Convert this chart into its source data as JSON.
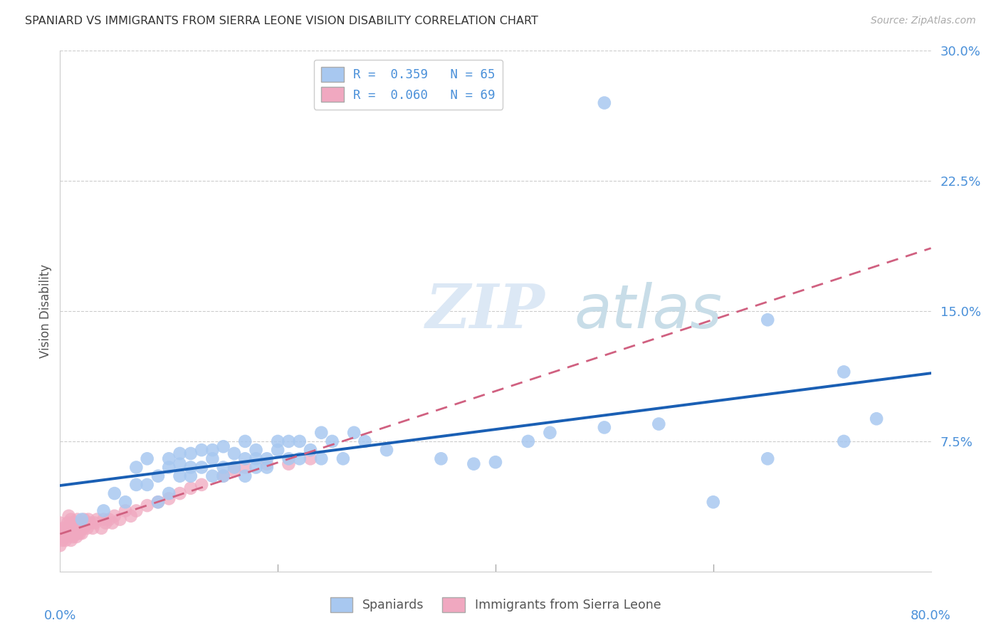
{
  "title": "SPANIARD VS IMMIGRANTS FROM SIERRA LEONE VISION DISABILITY CORRELATION CHART",
  "source": "Source: ZipAtlas.com",
  "ylabel": "Vision Disability",
  "yticks": [
    0.0,
    0.075,
    0.15,
    0.225,
    0.3
  ],
  "ytick_labels": [
    "",
    "7.5%",
    "15.0%",
    "22.5%",
    "30.0%"
  ],
  "xlim": [
    0.0,
    0.8
  ],
  "ylim": [
    0.0,
    0.3
  ],
  "watermark_zip": "ZIP",
  "watermark_atlas": "atlas",
  "legend_R1": "R =  0.359",
  "legend_N1": "N = 65",
  "legend_R2": "R =  0.060",
  "legend_N2": "N = 69",
  "spaniards_color": "#a8c8f0",
  "immigrants_color": "#f0a8c0",
  "regression_blue": "#1a5fb4",
  "regression_pink": "#d06080",
  "spaniards_x": [
    0.02,
    0.04,
    0.05,
    0.06,
    0.07,
    0.07,
    0.08,
    0.08,
    0.09,
    0.09,
    0.1,
    0.1,
    0.1,
    0.11,
    0.11,
    0.11,
    0.12,
    0.12,
    0.12,
    0.13,
    0.13,
    0.14,
    0.14,
    0.14,
    0.15,
    0.15,
    0.15,
    0.16,
    0.16,
    0.17,
    0.17,
    0.17,
    0.18,
    0.18,
    0.18,
    0.19,
    0.19,
    0.2,
    0.2,
    0.21,
    0.21,
    0.22,
    0.22,
    0.23,
    0.24,
    0.24,
    0.25,
    0.26,
    0.27,
    0.28,
    0.3,
    0.35,
    0.38,
    0.4,
    0.43,
    0.45,
    0.5,
    0.55,
    0.6,
    0.65,
    0.5,
    0.65,
    0.72,
    0.72,
    0.75
  ],
  "spaniards_y": [
    0.03,
    0.035,
    0.045,
    0.04,
    0.05,
    0.06,
    0.05,
    0.065,
    0.04,
    0.055,
    0.045,
    0.06,
    0.065,
    0.055,
    0.062,
    0.068,
    0.055,
    0.06,
    0.068,
    0.06,
    0.07,
    0.055,
    0.065,
    0.07,
    0.055,
    0.06,
    0.072,
    0.06,
    0.068,
    0.055,
    0.065,
    0.075,
    0.06,
    0.065,
    0.07,
    0.06,
    0.065,
    0.07,
    0.075,
    0.065,
    0.075,
    0.065,
    0.075,
    0.07,
    0.065,
    0.08,
    0.075,
    0.065,
    0.08,
    0.075,
    0.07,
    0.065,
    0.062,
    0.063,
    0.075,
    0.08,
    0.083,
    0.085,
    0.04,
    0.065,
    0.27,
    0.145,
    0.115,
    0.075,
    0.088
  ],
  "immigrants_x": [
    0.0,
    0.0,
    0.0,
    0.0,
    0.002,
    0.002,
    0.003,
    0.003,
    0.004,
    0.005,
    0.005,
    0.006,
    0.007,
    0.007,
    0.008,
    0.008,
    0.009,
    0.01,
    0.01,
    0.01,
    0.011,
    0.011,
    0.012,
    0.012,
    0.013,
    0.013,
    0.014,
    0.015,
    0.015,
    0.016,
    0.016,
    0.017,
    0.018,
    0.018,
    0.019,
    0.02,
    0.02,
    0.021,
    0.022,
    0.023,
    0.024,
    0.025,
    0.026,
    0.028,
    0.03,
    0.032,
    0.034,
    0.038,
    0.04,
    0.042,
    0.045,
    0.048,
    0.05,
    0.055,
    0.06,
    0.065,
    0.07,
    0.08,
    0.09,
    0.1,
    0.11,
    0.12,
    0.13,
    0.15,
    0.16,
    0.17,
    0.19,
    0.21,
    0.23
  ],
  "immigrants_y": [
    0.015,
    0.02,
    0.022,
    0.028,
    0.018,
    0.024,
    0.02,
    0.025,
    0.022,
    0.018,
    0.025,
    0.02,
    0.022,
    0.028,
    0.024,
    0.032,
    0.026,
    0.018,
    0.024,
    0.03,
    0.022,
    0.028,
    0.02,
    0.026,
    0.022,
    0.028,
    0.025,
    0.02,
    0.026,
    0.022,
    0.03,
    0.025,
    0.022,
    0.028,
    0.024,
    0.022,
    0.028,
    0.025,
    0.03,
    0.026,
    0.028,
    0.025,
    0.03,
    0.028,
    0.025,
    0.028,
    0.03,
    0.025,
    0.03,
    0.028,
    0.03,
    0.028,
    0.032,
    0.03,
    0.035,
    0.032,
    0.035,
    0.038,
    0.04,
    0.042,
    0.045,
    0.048,
    0.05,
    0.055,
    0.058,
    0.06,
    0.062,
    0.062,
    0.065
  ]
}
